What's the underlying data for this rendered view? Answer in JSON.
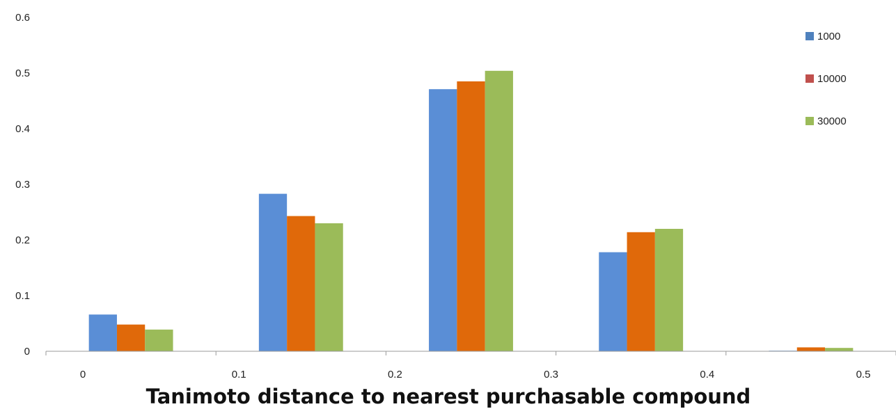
{
  "chart_data": {
    "type": "bar",
    "x_ticks": [
      "0",
      "0.1",
      "0.2",
      "0.3",
      "0.4",
      "0.5"
    ],
    "y_ticks": [
      "0",
      "0.1",
      "0.2",
      "0.3",
      "0.4",
      "0.5",
      "0.6"
    ],
    "ylim": [
      0,
      0.6
    ],
    "xlabel": "Tanimoto distance to nearest purchasable compound",
    "ylabel": "",
    "categories": [
      "0-0.1",
      "0.1-0.2",
      "0.2-0.3",
      "0.3-0.4",
      "0.4-0.5"
    ],
    "series": [
      {
        "name": "1000",
        "color": "#5A8ED6",
        "values": [
          0.066,
          0.283,
          0.471,
          0.178,
          0.001
        ]
      },
      {
        "name": "10000",
        "color": "#E0690A",
        "values": [
          0.048,
          0.243,
          0.485,
          0.214,
          0.007
        ]
      },
      {
        "name": "30000",
        "color": "#9BBB59",
        "values": [
          0.039,
          0.23,
          0.504,
          0.22,
          0.006
        ]
      }
    ],
    "legend_swatch_colors": [
      "#4F81BD",
      "#C0504D",
      "#9BBB59"
    ],
    "legend_position": "top-right",
    "grid": false
  }
}
